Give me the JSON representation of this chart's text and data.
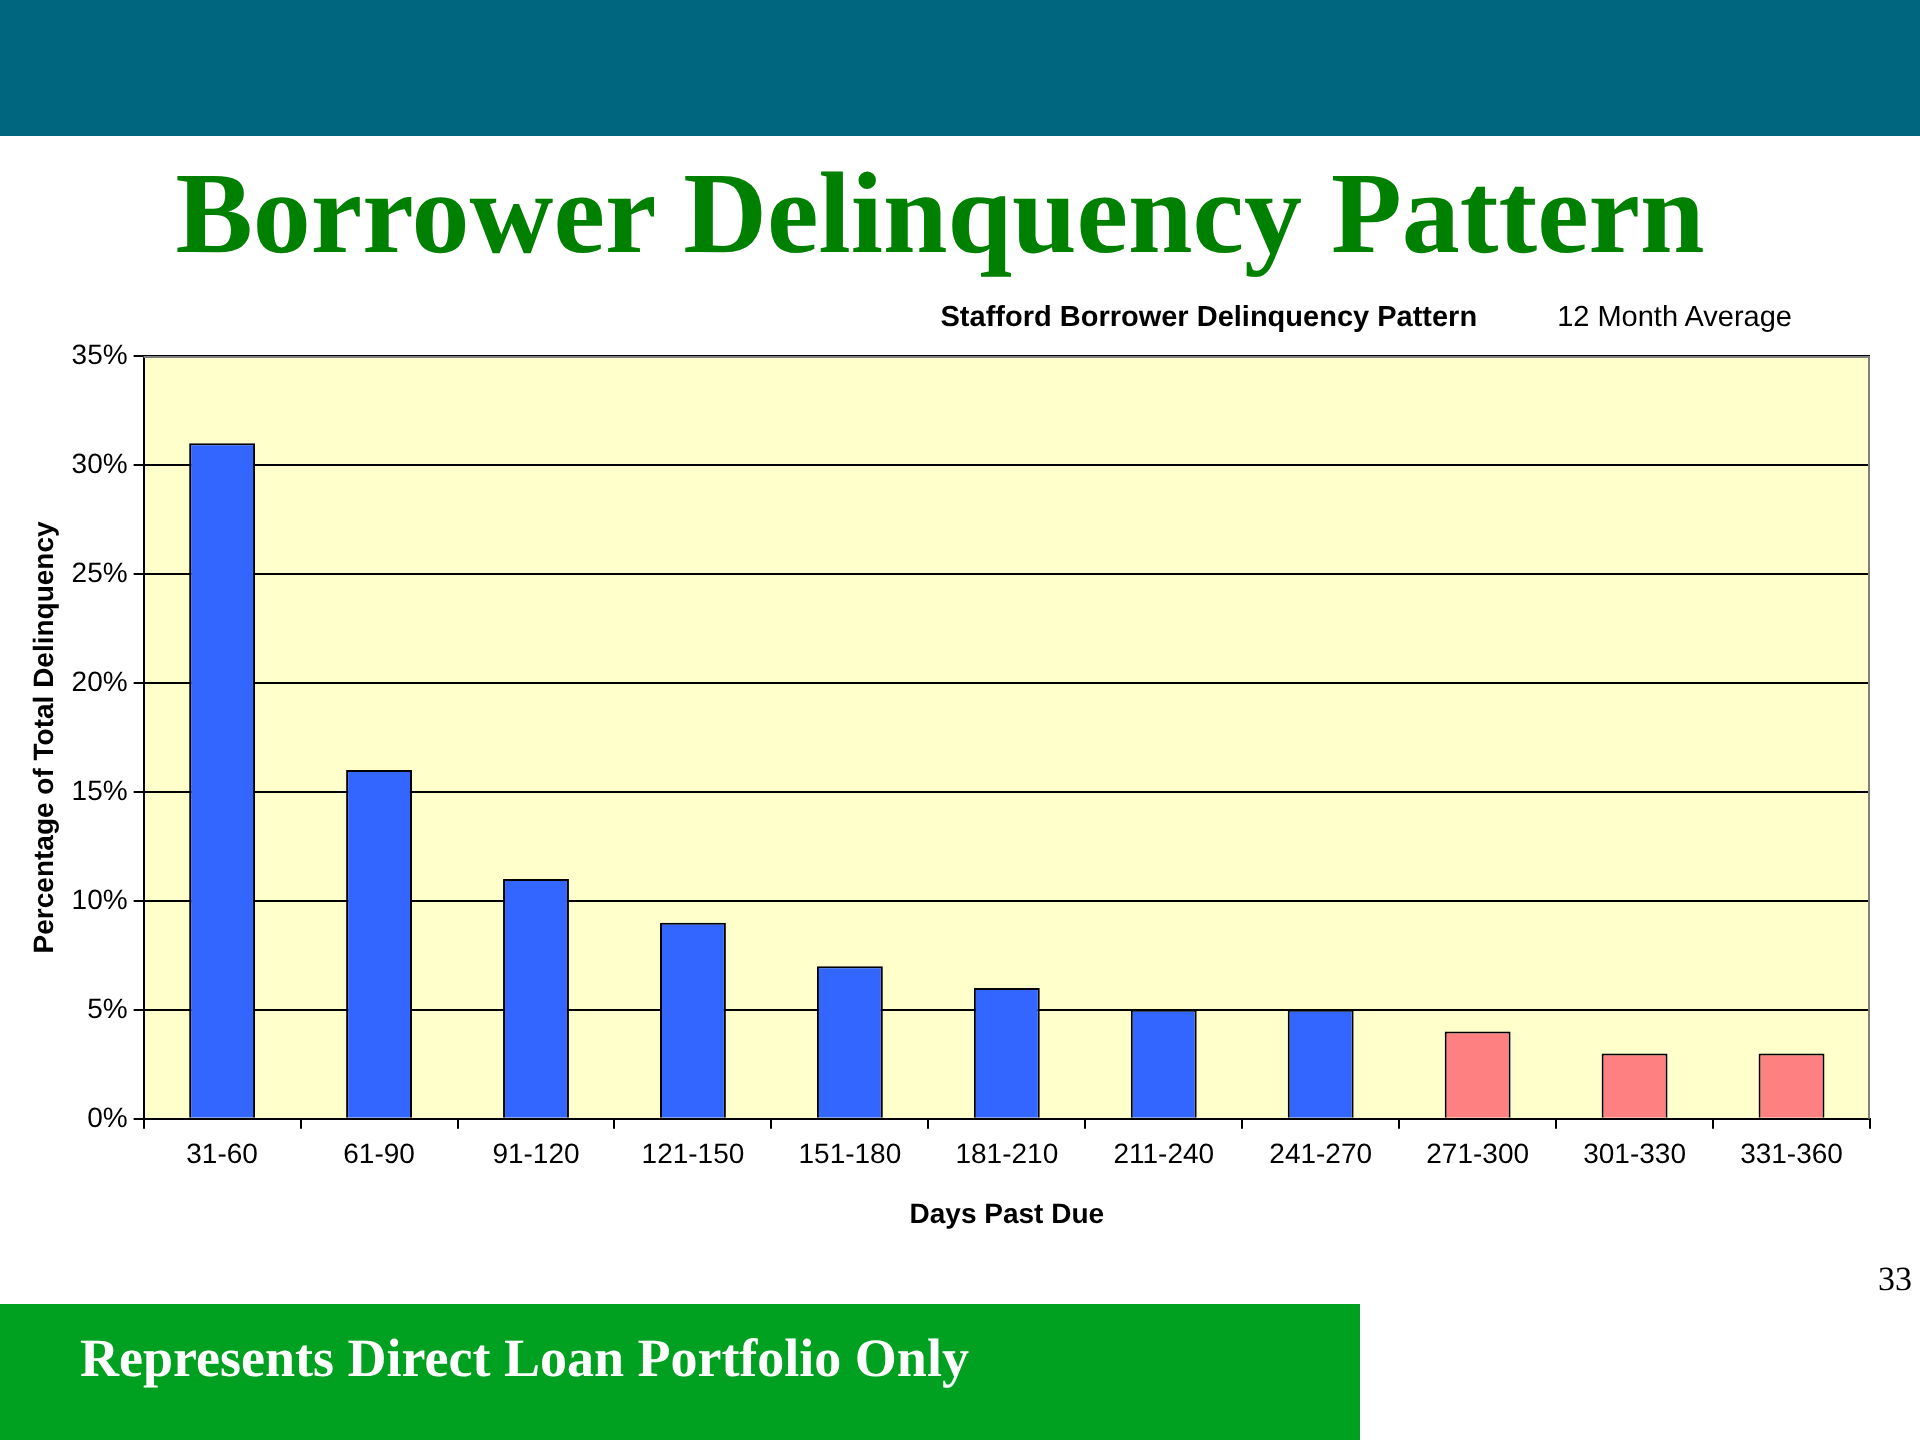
{
  "chart_data": {
    "type": "bar",
    "title": "Borrower Delinquency Pattern",
    "subtitle": "Stafford Borrower Delinquency Pattern",
    "xlabel": "Days Past Due",
    "ylabel": "Percentage of Total Delinquency",
    "categories": [
      "31-60",
      "61-90",
      "91-120",
      "121-150",
      "151-180",
      "181-210",
      "211-240",
      "241-270",
      "271-300",
      "301-330",
      "331-360"
    ],
    "values": [
      31,
      16,
      11,
      9,
      7,
      6,
      5,
      5,
      4,
      3,
      3
    ],
    "colors": [
      "#3366ff",
      "#3366ff",
      "#3366ff",
      "#3366ff",
      "#3366ff",
      "#3366ff",
      "#3366ff",
      "#3366ff",
      "#ff8080",
      "#ff8080",
      "#ff8080"
    ],
    "ylim": [
      0,
      35
    ],
    "yticks": [
      {
        "value": 0,
        "label": "0%"
      },
      {
        "value": 5,
        "label": "5%"
      },
      {
        "value": 10,
        "label": "10%"
      },
      {
        "value": 15,
        "label": "15%"
      },
      {
        "value": 20,
        "label": "20%"
      },
      {
        "value": 25,
        "label": "25%"
      },
      {
        "value": 30,
        "label": "30%"
      },
      {
        "value": 35,
        "label": "35%"
      }
    ],
    "grid": "y",
    "legend": false,
    "annotations": [
      "12 Month Average",
      "Represents Direct Loan Portfolio Only",
      "33"
    ]
  }
}
